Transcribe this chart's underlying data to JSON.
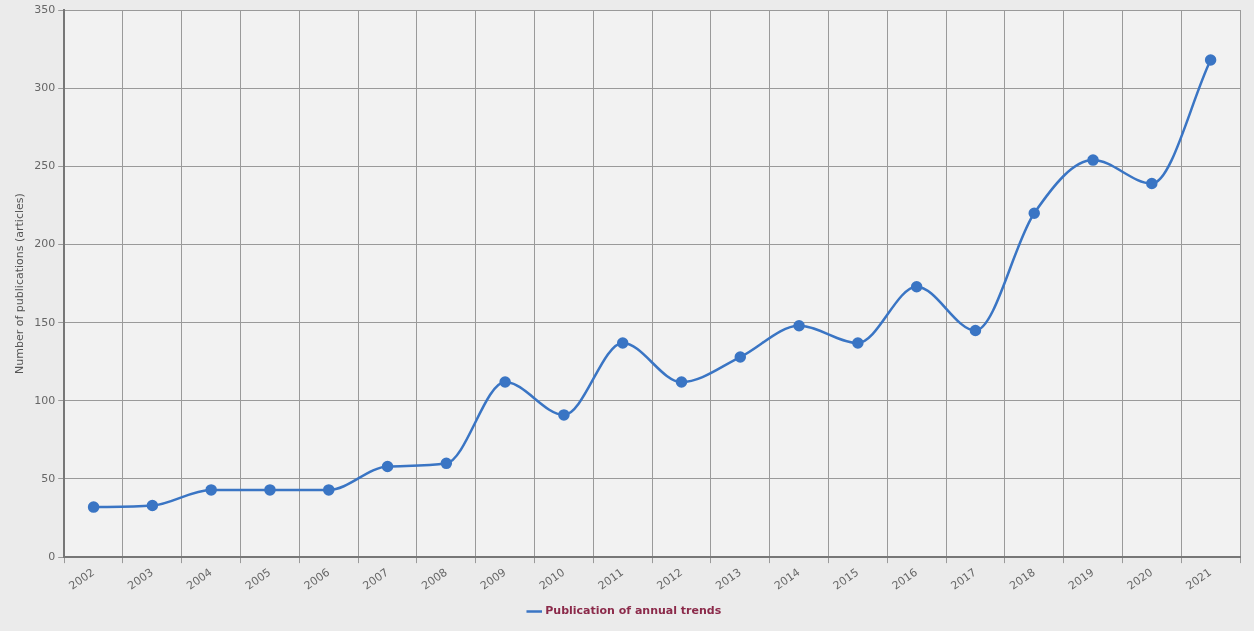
{
  "chart_data": {
    "type": "line",
    "ylabel": "Number of publications (articles)",
    "categories": [
      "2002",
      "2003",
      "2004",
      "2005",
      "2006",
      "2007",
      "2008",
      "2009",
      "2010",
      "2011",
      "2012",
      "2013",
      "2014",
      "2015",
      "2016",
      "2017",
      "2018",
      "2019",
      "2020",
      "2021"
    ],
    "series": [
      {
        "name": "Publication of annual trends",
        "color": "#3a75c4",
        "values": [
          32,
          33,
          43,
          43,
          43,
          58,
          60,
          112,
          91,
          137,
          112,
          128,
          148,
          137,
          173,
          145,
          220,
          254,
          239,
          318
        ]
      }
    ],
    "ylim": [
      0,
      350
    ],
    "yticks": [
      0,
      50,
      100,
      150,
      200,
      250,
      300,
      350
    ],
    "grid": true,
    "legend": "bottom",
    "marker": "circle",
    "line_style": "solid"
  }
}
